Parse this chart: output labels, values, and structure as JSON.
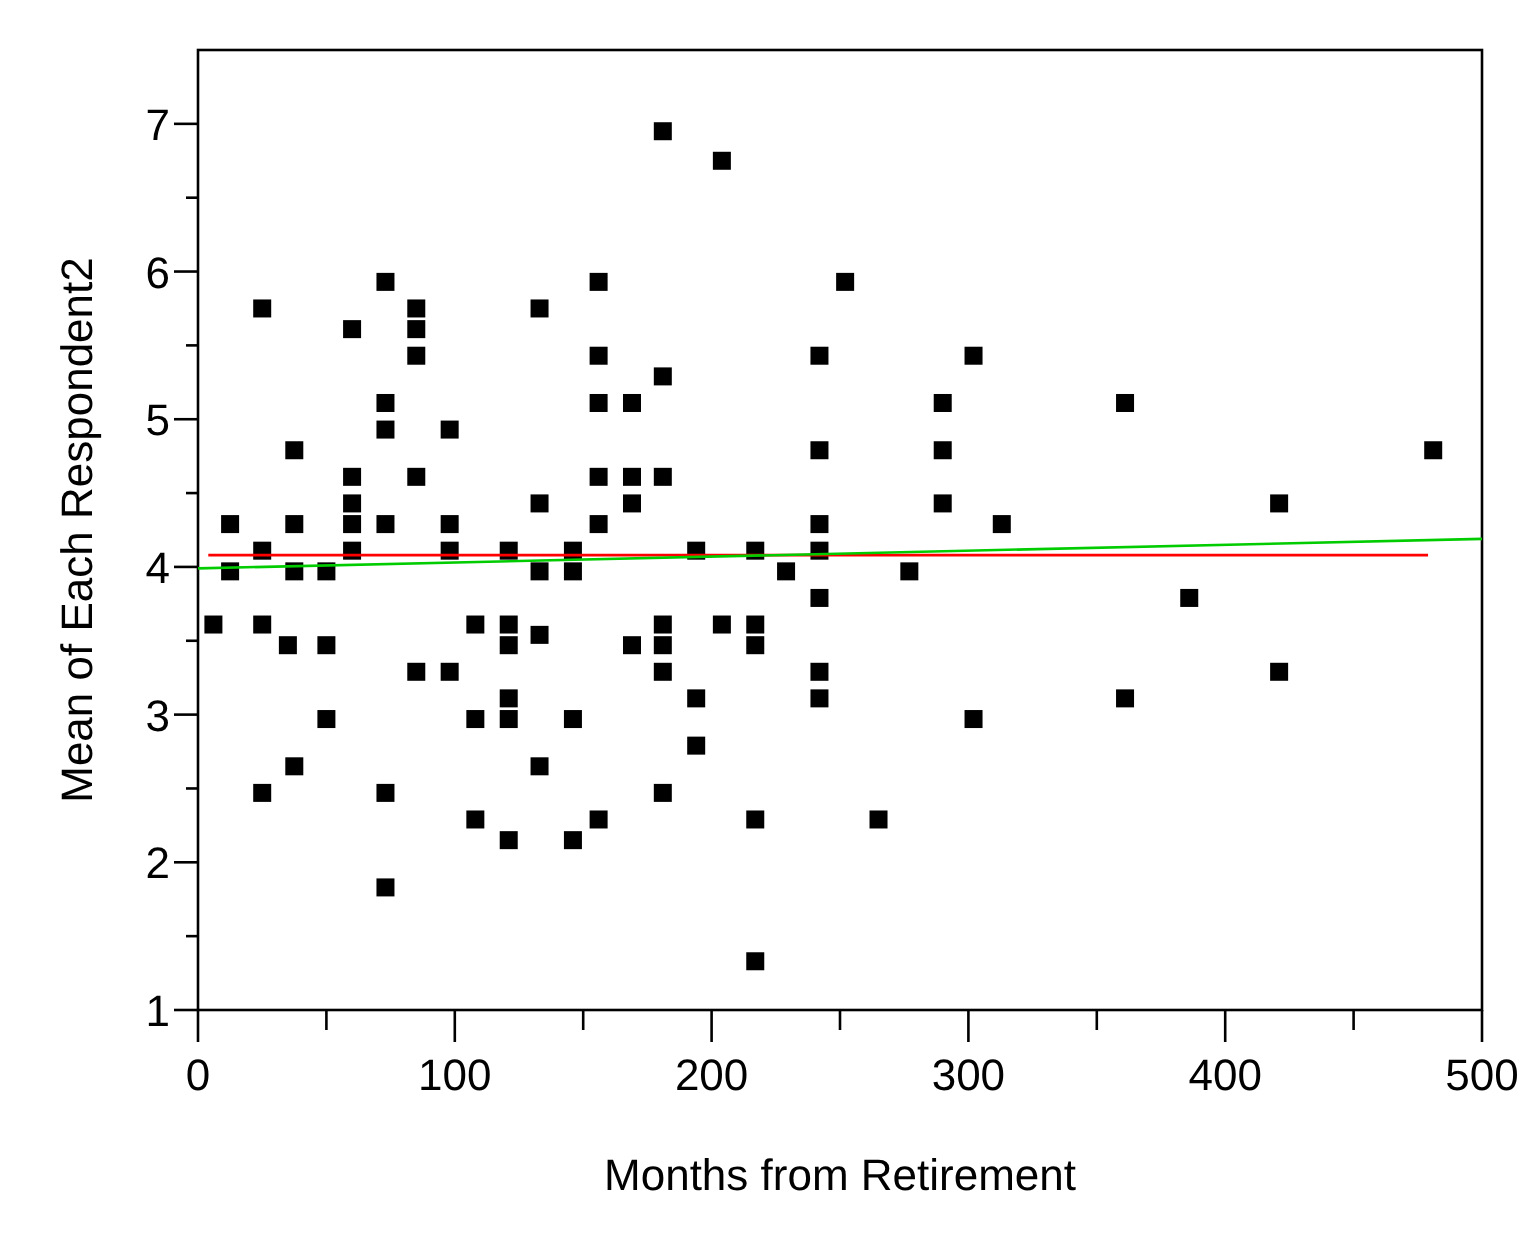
{
  "chart_data": {
    "type": "scatter",
    "xlabel": "Months from Retirement",
    "ylabel": "Mean of Each Respondent2",
    "xlim": [
      0,
      500
    ],
    "ylim": [
      1,
      7.5
    ],
    "xticks": [
      0,
      {
        "value": 50,
        "label": null
      },
      100,
      {
        "value": 150,
        "label": null
      },
      200,
      {
        "value": 250,
        "label": null
      },
      300,
      {
        "value": 350,
        "label": null
      },
      400,
      {
        "value": 450,
        "label": null
      },
      500
    ],
    "yticks": [
      1,
      {
        "value": 1.5,
        "label": null
      },
      2,
      {
        "value": 2.5,
        "label": null
      },
      3,
      {
        "value": 3.5,
        "label": null
      },
      4,
      {
        "value": 4.5,
        "label": null
      },
      5,
      {
        "value": 5.5,
        "label": null
      },
      6,
      {
        "value": 6.5,
        "label": null
      },
      7
    ],
    "grid": false,
    "series": [
      {
        "color": "#000000",
        "marker": "square",
        "x": [
          181,
          204,
          73,
          156,
          252,
          25,
          85,
          133,
          60,
          85,
          85,
          156,
          242,
          181,
          73,
          156,
          169,
          73,
          98,
          37.5,
          242,
          60,
          85,
          156,
          169,
          181,
          60,
          133,
          169,
          12.5,
          37.5,
          60,
          73,
          98,
          156,
          242,
          25,
          60,
          98,
          121,
          146,
          194,
          217,
          242,
          12.5,
          37.5,
          50,
          133,
          146,
          229,
          242,
          6,
          25,
          108,
          121,
          133,
          181,
          204,
          217,
          35,
          50,
          121,
          169,
          181,
          217,
          85,
          98,
          181,
          242,
          121,
          194,
          242,
          50,
          108,
          121,
          146,
          194,
          37.5,
          133,
          25,
          73,
          181,
          108,
          156,
          217,
          121,
          146,
          73,
          217,
          302,
          290,
          361,
          290,
          481,
          290,
          421,
          313,
          277,
          386,
          421,
          361,
          302,
          265
        ],
        "values": [
          6.95,
          6.75,
          5.93,
          5.93,
          5.93,
          5.75,
          5.75,
          5.75,
          5.61,
          5.61,
          5.43,
          5.43,
          5.43,
          5.29,
          5.11,
          5.11,
          5.11,
          4.93,
          4.93,
          4.79,
          4.79,
          4.61,
          4.61,
          4.61,
          4.61,
          4.61,
          4.43,
          4.43,
          4.43,
          4.29,
          4.29,
          4.29,
          4.29,
          4.29,
          4.29,
          4.29,
          4.11,
          4.11,
          4.11,
          4.11,
          4.11,
          4.11,
          4.11,
          4.11,
          3.97,
          3.97,
          3.97,
          3.97,
          3.97,
          3.97,
          3.79,
          3.61,
          3.61,
          3.61,
          3.61,
          3.54,
          3.61,
          3.61,
          3.61,
          3.47,
          3.47,
          3.47,
          3.47,
          3.47,
          3.47,
          3.29,
          3.29,
          3.29,
          3.29,
          3.11,
          3.11,
          3.11,
          2.97,
          2.97,
          2.97,
          2.97,
          2.79,
          2.65,
          2.65,
          2.47,
          2.47,
          2.47,
          2.29,
          2.29,
          2.29,
          2.15,
          2.15,
          1.83,
          1.33,
          5.43,
          5.11,
          5.11,
          4.79,
          4.79,
          4.43,
          4.43,
          4.29,
          3.97,
          3.79,
          3.29,
          3.11,
          2.97,
          2.29
        ]
      },
      {
        "type": "line",
        "marker": "none",
        "color": "#ff0000",
        "x": [
          4,
          479
        ],
        "values": [
          4.08,
          4.08
        ]
      },
      {
        "type": "line",
        "marker": "none",
        "color": "#00cc00",
        "x": [
          0,
          500
        ],
        "values": [
          3.99,
          4.19
        ]
      }
    ]
  }
}
